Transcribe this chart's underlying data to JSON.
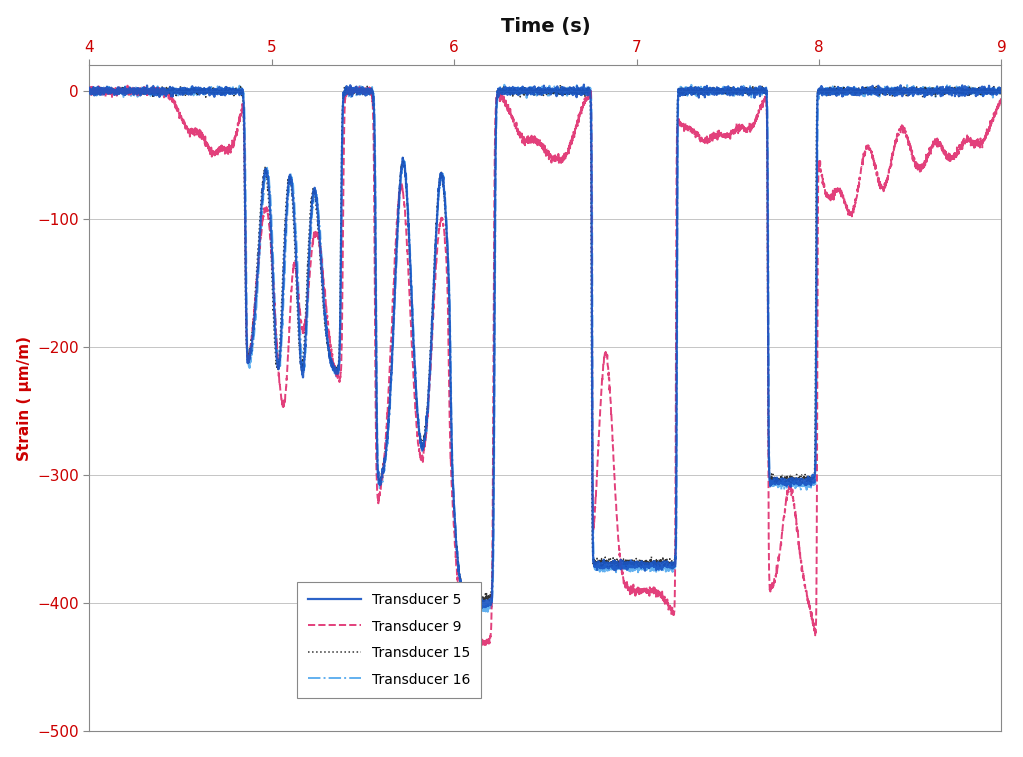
{
  "title": "Time (s)",
  "ylabel": "Strain ( μm/m)",
  "xlim": [
    4,
    9
  ],
  "ylim": [
    -500,
    20
  ],
  "yticks": [
    0,
    -100,
    -200,
    -300,
    -400,
    -500
  ],
  "xticks": [
    4,
    5,
    6,
    7,
    8,
    9
  ],
  "background_color": "#ffffff",
  "grid_color": "#aaaaaa",
  "series": [
    {
      "label": "Transducer 5",
      "color": "#1a56c4",
      "lw": 1.6,
      "ls": "solid",
      "zorder": 4
    },
    {
      "label": "Transducer 9",
      "color": "#e03070",
      "lw": 1.4,
      "ls": "dashed",
      "zorder": 3
    },
    {
      "label": "Transducer 15",
      "color": "#222222",
      "lw": 1.1,
      "ls": "dotted",
      "zorder": 2
    },
    {
      "label": "Transducer 16",
      "color": "#55aaee",
      "lw": 1.4,
      "ls": "dashdot",
      "zorder": 1
    }
  ],
  "title_fontsize": 14,
  "ylabel_fontsize": 11,
  "tick_label_fontsize": 11,
  "legend_fontsize": 10,
  "tick_label_color": "#cc0000",
  "ylabel_color": "#cc0000",
  "title_color": "#111111"
}
